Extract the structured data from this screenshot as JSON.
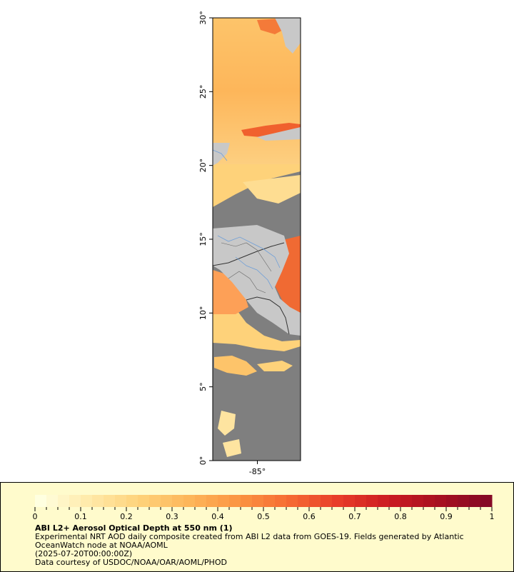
{
  "title": "ABI L2+ Aerosol Optical Depth at 550 nm (1)",
  "description_lines": [
    "Experimental NRT AOD daily composite created from ABI L2 data from GOES-19. Fields generated by Atlantic",
    "OceanWatch node at NOAA/AOML",
    "(2025-07-20T00:00:00Z)",
    "Data courtesy of USDOC/NOAA/OAR/AOML/PHOD"
  ],
  "map": {
    "lat_range": [
      0,
      30
    ],
    "lat_ticks": [
      {
        "value": 0,
        "label": "0°"
      },
      {
        "value": 5,
        "label": "5°"
      },
      {
        "value": 10,
        "label": "10°"
      },
      {
        "value": 15,
        "label": "15°"
      },
      {
        "value": 20,
        "label": "20°"
      },
      {
        "value": 25,
        "label": "25°"
      },
      {
        "value": 30,
        "label": "30°"
      }
    ],
    "lon_ticks": [
      {
        "value": -85,
        "label": "-85°"
      }
    ],
    "colors": {
      "land": "#c8c8c8",
      "no_data": "#7f7f7f",
      "border": "#333333",
      "river": "#6f9fd8"
    }
  },
  "colorbar": {
    "min": 0,
    "max": 1,
    "tick_labels": [
      "0",
      "0.1",
      "0.2",
      "0.3",
      "0.4",
      "0.5",
      "0.6",
      "0.7",
      "0.8",
      "0.9",
      "1"
    ],
    "colors": [
      "#ffffe0",
      "#ffe9a8",
      "#fed27a",
      "#fdb65a",
      "#fb9441",
      "#f66c33",
      "#e83d2a",
      "#cc1c22",
      "#a9101f",
      "#860a26"
    ]
  }
}
